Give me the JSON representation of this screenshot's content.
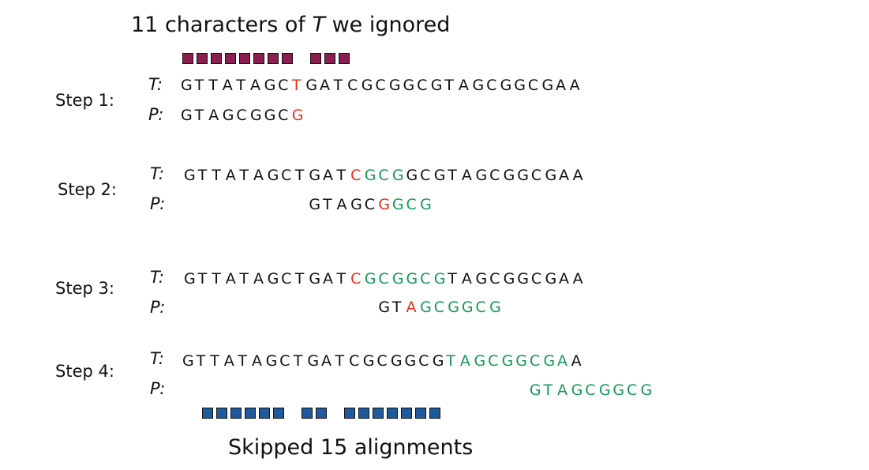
{
  "top_caption": {
    "pre": "11 characters of ",
    "ital": "T",
    "post": " we ignored"
  },
  "bottom_caption": "Skipped 15 alignments",
  "colors": {
    "maroon": "#8a1e4e",
    "blue": "#1e5a9c",
    "red": "#e8301c",
    "green": "#139a55"
  },
  "top_boxes": [
    1,
    1,
    1,
    1,
    1,
    1,
    1,
    1,
    0,
    1,
    1,
    1
  ],
  "bottom_boxes": [
    1,
    1,
    1,
    1,
    1,
    1,
    0,
    1,
    1,
    0,
    1,
    1,
    1,
    1,
    1,
    1,
    1
  ],
  "steps": [
    {
      "label": "Step 1:",
      "t_label": "T:",
      "p_label": "P:",
      "text": "GTTATAGCTGATCGCGGCGTAGCGGCGAA",
      "text_colors": "________r____________________",
      "pattern": "GTAGCGGCG",
      "pattern_offset": 0,
      "pattern_colors": "________r"
    },
    {
      "label": "Step 2:",
      "t_label": "T:",
      "p_label": "P:",
      "text": "GTTATAGCTGATCGCGGCGTAGCGGCGAA",
      "text_colors": "____________rggg_____________",
      "pattern": "GTAGCGGCG",
      "pattern_offset": 9,
      "pattern_colors": "_____rggg"
    },
    {
      "label": "Step 3:",
      "t_label": "T:",
      "p_label": "P:",
      "text": "GTTATAGCTGATCGCGGCGTAGCGGCGAA",
      "text_colors": "____________rgggggg__________",
      "pattern": "GTAGCGGCG",
      "pattern_offset": 14,
      "pattern_colors": "__rgggggg"
    },
    {
      "label": "Step 4:",
      "t_label": "T:",
      "p_label": "P:",
      "text": "GTTATAGCTGATCGCGGCGTAGCGGCGAA",
      "text_colors": "___________________ggggggggg_",
      "pattern": "GTAGCGGCG",
      "pattern_offset": 25,
      "pattern_colors": "ggggggggg"
    }
  ]
}
